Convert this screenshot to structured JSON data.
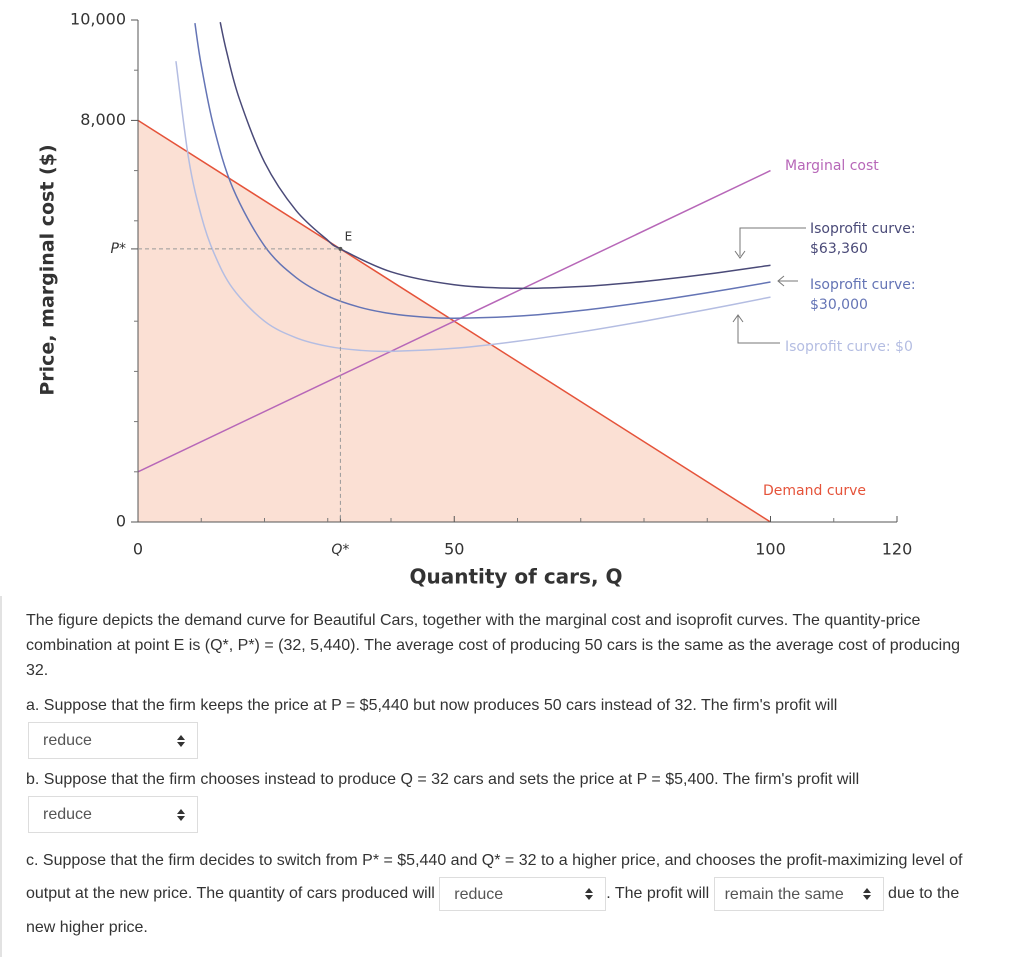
{
  "chart_data": {
    "type": "line",
    "x_label": "Quantity of cars, Q",
    "y_label": "Price, marginal cost ($)",
    "xlim": [
      0,
      120
    ],
    "ylim": [
      0,
      10000
    ],
    "xticks": [
      0,
      {
        "value": 32,
        "label": "Q*"
      },
      50,
      100,
      120
    ],
    "yticks": [
      0,
      {
        "value": 5440,
        "label": "P*"
      },
      {
        "value": 8000,
        "label": "8,000"
      },
      {
        "value": 10000,
        "label": "10,000"
      }
    ],
    "xminorticks": [
      10,
      20,
      30,
      40,
      60,
      70,
      80,
      90,
      110
    ],
    "yminorticks": [
      1000,
      2000,
      3000,
      4000,
      6000,
      7000,
      9000
    ],
    "point": {
      "label": "E",
      "x": 32,
      "y": 5440
    },
    "series": [
      {
        "name": "Demand curve",
        "color": "#e5533a",
        "area_color": "#fbe0d4",
        "x": [
          0,
          100
        ],
        "values": [
          8000,
          0
        ]
      },
      {
        "name": "Marginal cost",
        "color": "#b767b8",
        "x": [
          0,
          100
        ],
        "values": [
          1000,
          7000
        ]
      },
      {
        "name": "Isoprofit curve: $63,360",
        "color": "#4a4a78",
        "x": [
          13,
          14,
          16,
          20,
          25,
          30,
          32,
          40,
          50,
          60,
          70,
          80,
          90,
          100
        ],
        "values": [
          9956,
          9374,
          8440,
          7168,
          6204,
          5612,
          5440,
          4984,
          4727,
          4656,
          4691,
          4792,
          4937,
          5114
        ]
      },
      {
        "name": "Isoprofit curve: $30,000",
        "color": "#6474b5",
        "x": [
          9,
          10,
          12,
          15,
          20,
          25,
          30,
          35,
          40,
          45,
          50,
          60,
          70,
          80,
          90,
          100
        ],
        "values": [
          9937,
          9100,
          7860,
          6650,
          5500,
          4870,
          4500,
          4279,
          4150,
          4083,
          4060,
          4100,
          4214,
          4375,
          4567,
          4780
        ]
      },
      {
        "name": "Isoprofit curve: $0",
        "color": "#b4bde2",
        "x": [
          6,
          8,
          10,
          12,
          15,
          20,
          25,
          30,
          35,
          40,
          50,
          60,
          70,
          80,
          90,
          100
        ],
        "values": [
          9180,
          7240,
          6100,
          5360,
          4650,
          4000,
          3670,
          3500,
          3421,
          3400,
          3460,
          3600,
          3786,
          4000,
          4233,
          4480
        ]
      }
    ]
  },
  "question": {
    "intro": "The figure depicts the demand curve for Beautiful Cars, together with the marginal cost and isoprofit curves. The quantity-price combination at point E is (Q*, P*) = (32, 5,440). The average cost of producing 50 cars is the same as the average cost of producing 32.",
    "parts": [
      {
        "text": "a. Suppose that the firm keeps the price at P = $5,440 but now produces 50 cars instead of 32. The firm's profit will",
        "answer": "reduce"
      },
      {
        "text": "b. Suppose that the firm chooses instead to produce Q = 32 cars and sets the price at P = $5,400. The firm's profit will",
        "answer": "reduce"
      },
      {
        "text": "c. Suppose that the firm decides to switch from P* = $5,440 and Q* = 32 to a higher price, and chooses the profit-maximizing level of output at the new price. The quantity of cars produced will",
        "answer": "reduce",
        "text2": ". The profit will",
        "answer2": "remain the same",
        "text3": "due to the new higher price."
      }
    ]
  }
}
